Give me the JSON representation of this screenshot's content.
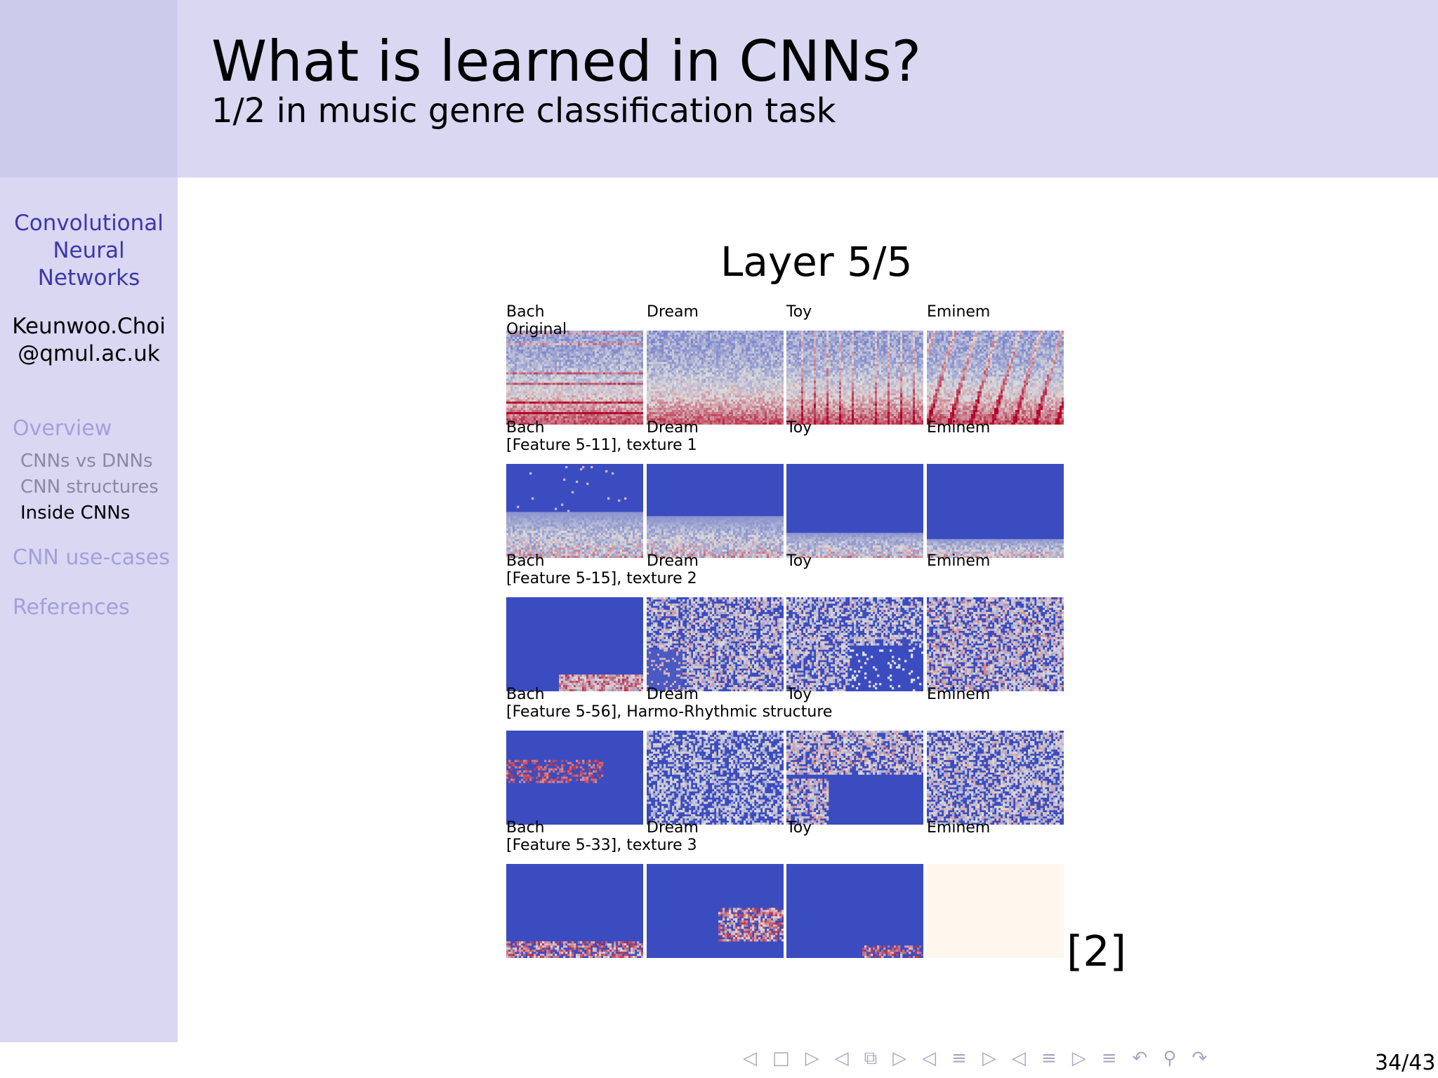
{
  "slide": {
    "title": "What is learned in CNNs?",
    "subtitle": "1/2 in music genre classification task"
  },
  "sidebar": {
    "talk_title": "Convolutional Neural Networks",
    "author": "Keunwoo.Choi @qmul.ac.uk",
    "sections": [
      {
        "label": "Overview"
      },
      {
        "label": "CNN use-cases"
      },
      {
        "label": "References"
      }
    ],
    "subsections": [
      {
        "label": "CNNs vs DNNs",
        "active": false
      },
      {
        "label": "CNN structures",
        "active": false
      },
      {
        "label": "Inside CNNs",
        "active": true
      }
    ]
  },
  "figure": {
    "title": "Layer 5/5",
    "columns": [
      "Bach",
      "Dream",
      "Toy",
      "Eminem"
    ],
    "rows": [
      {
        "caption": "Original",
        "kind": "spectrogram"
      },
      {
        "caption": "[Feature 5-11], texture 1",
        "kind": "low-band"
      },
      {
        "caption": "[Feature 5-15], texture 2",
        "kind": "texture"
      },
      {
        "caption": "[Feature 5-56], Harmo-Rhythmic structure",
        "kind": "structure"
      },
      {
        "caption": "[Feature 5-33], texture 3",
        "kind": "sparse"
      }
    ],
    "citation": "[2]",
    "colors": {
      "low": "#3b4cc0",
      "mid": "#dddcdc",
      "high": "#b40426",
      "blank": "#fff6ee"
    }
  },
  "navigation": {
    "icons": [
      "prev-frame-icon",
      "frame-icon",
      "next-frame-icon",
      "prev-subsection-icon",
      "subsection-icon",
      "next-subsection-icon",
      "prev-section-icon",
      "section-icon",
      "next-section-icon",
      "prev-page-icon",
      "page-icon",
      "next-page-icon",
      "outline-icon",
      "back-icon",
      "search-icon",
      "forward-icon"
    ],
    "page_number": "34/43"
  }
}
